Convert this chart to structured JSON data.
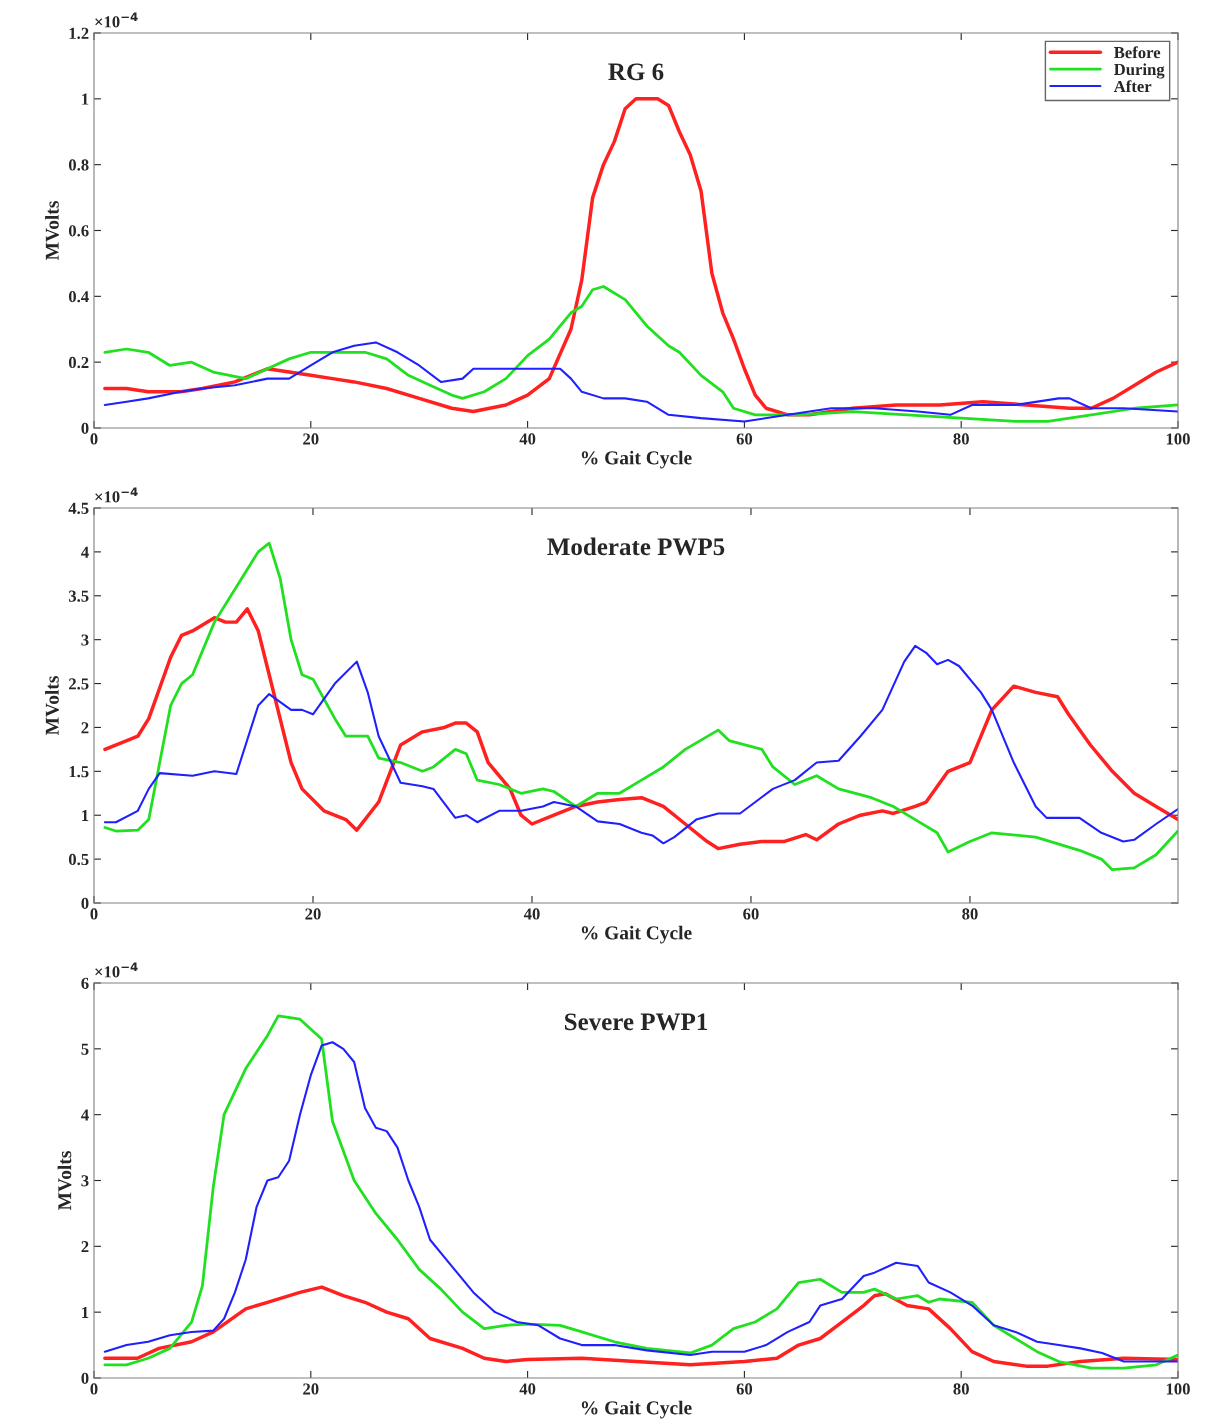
{
  "chart_data": [
    {
      "type": "line",
      "title": "RG 6",
      "xlabel": "% Gait Cycle",
      "ylabel": "MVolts",
      "xlim": [
        0,
        100
      ],
      "xticks": [
        0,
        20,
        40,
        60,
        80,
        100
      ],
      "ylim": [
        0,
        1.2
      ],
      "yticks": [
        0,
        0.2,
        0.4,
        0.6,
        0.8,
        1,
        1.2
      ],
      "legend": "top right",
      "grid": false,
      "annotations": [
        "×10$^{−4}$"
      ],
      "series": [
        {
          "name": "Before",
          "color": "#ff2020",
          "x": [
            1,
            3,
            5,
            8,
            10,
            13,
            16,
            18,
            20,
            22,
            24,
            27,
            30,
            33,
            35,
            38,
            40,
            42,
            44,
            45,
            46,
            47,
            48,
            49,
            50,
            51,
            52,
            53,
            54,
            55,
            56,
            57,
            58,
            59,
            60,
            61,
            62,
            64,
            66,
            70,
            74,
            78,
            82,
            86,
            90,
            92,
            94,
            96,
            98,
            100
          ],
          "values": [
            0.12,
            0.12,
            0.11,
            0.11,
            0.12,
            0.14,
            0.18,
            0.17,
            0.16,
            0.15,
            0.14,
            0.12,
            0.09,
            0.06,
            0.05,
            0.07,
            0.1,
            0.15,
            0.3,
            0.45,
            0.7,
            0.8,
            0.87,
            0.97,
            1.0,
            1.0,
            1.0,
            0.98,
            0.9,
            0.83,
            0.72,
            0.47,
            0.35,
            0.27,
            0.18,
            0.1,
            0.06,
            0.04,
            0.04,
            0.06,
            0.07,
            0.07,
            0.08,
            0.07,
            0.06,
            0.06,
            0.09,
            0.13,
            0.17,
            0.2
          ]
        },
        {
          "name": "During",
          "color": "#20e020",
          "x": [
            1,
            3,
            5,
            7,
            9,
            11,
            14,
            16,
            18,
            20,
            23,
            25,
            27,
            29,
            31,
            33,
            34,
            36,
            38,
            40,
            42,
            44,
            45,
            46,
            47,
            49,
            51,
            53,
            54,
            56,
            58,
            59,
            61,
            65,
            70,
            75,
            80,
            85,
            88,
            92,
            96,
            100
          ],
          "values": [
            0.23,
            0.24,
            0.23,
            0.19,
            0.2,
            0.17,
            0.15,
            0.18,
            0.21,
            0.23,
            0.23,
            0.23,
            0.21,
            0.16,
            0.13,
            0.1,
            0.09,
            0.11,
            0.15,
            0.22,
            0.27,
            0.35,
            0.37,
            0.42,
            0.43,
            0.39,
            0.31,
            0.25,
            0.23,
            0.16,
            0.11,
            0.06,
            0.04,
            0.04,
            0.05,
            0.04,
            0.03,
            0.02,
            0.02,
            0.04,
            0.06,
            0.07
          ]
        },
        {
          "name": "After",
          "color": "#2020ff",
          "x": [
            1,
            3,
            5,
            8,
            10,
            13,
            16,
            18,
            20,
            22,
            24,
            26,
            28,
            30,
            32,
            34,
            35,
            38,
            40,
            43,
            44,
            45,
            47,
            49,
            51,
            53,
            56,
            60,
            64,
            68,
            72,
            76,
            79,
            81,
            85,
            89,
            90,
            92,
            95,
            100
          ],
          "values": [
            0.07,
            0.08,
            0.09,
            0.11,
            0.12,
            0.13,
            0.15,
            0.15,
            0.19,
            0.23,
            0.25,
            0.26,
            0.23,
            0.19,
            0.14,
            0.15,
            0.18,
            0.18,
            0.18,
            0.18,
            0.15,
            0.11,
            0.09,
            0.09,
            0.08,
            0.04,
            0.03,
            0.02,
            0.04,
            0.06,
            0.06,
            0.05,
            0.04,
            0.07,
            0.07,
            0.09,
            0.09,
            0.06,
            0.06,
            0.05
          ]
        }
      ]
    },
    {
      "type": "line",
      "title": "Moderate PWP5",
      "xlabel": "% Gait Cycle",
      "ylabel": "MVolts",
      "xlim": [
        0,
        99
      ],
      "xticks": [
        0,
        20,
        40,
        60,
        80
      ],
      "ylim": [
        0,
        4.5
      ],
      "yticks": [
        0,
        0.5,
        1,
        1.5,
        2,
        2.5,
        3,
        3.5,
        4,
        4.5
      ],
      "grid": false,
      "annotations": [
        "×10$^{−4}$"
      ],
      "series": [
        {
          "color": "#ff2020",
          "x": [
            1,
            3,
            4,
            5,
            7,
            8,
            9,
            11,
            12,
            13,
            14,
            15,
            16,
            18,
            19,
            21,
            23,
            24,
            26,
            28,
            30,
            32,
            33,
            34,
            35,
            36,
            38,
            39,
            40,
            42,
            44,
            46,
            48,
            50,
            52,
            54,
            56,
            57,
            59,
            61,
            63,
            65,
            66,
            68,
            70,
            72,
            73,
            75,
            76,
            78,
            80,
            82,
            84,
            86,
            88,
            89,
            91,
            93,
            95,
            97,
            99
          ],
          "values": [
            1.75,
            1.85,
            1.9,
            2.1,
            2.8,
            3.05,
            3.1,
            3.25,
            3.2,
            3.2,
            3.35,
            3.1,
            2.6,
            1.6,
            1.3,
            1.05,
            0.95,
            0.83,
            1.15,
            1.8,
            1.95,
            2.0,
            2.05,
            2.05,
            1.95,
            1.6,
            1.3,
            1.0,
            0.9,
            1.0,
            1.1,
            1.15,
            1.18,
            1.2,
            1.1,
            0.9,
            0.7,
            0.62,
            0.67,
            0.7,
            0.7,
            0.78,
            0.72,
            0.9,
            1.0,
            1.05,
            1.02,
            1.1,
            1.15,
            1.5,
            1.6,
            2.2,
            2.47,
            2.4,
            2.35,
            2.15,
            1.8,
            1.5,
            1.25,
            1.1,
            0.95
          ]
        },
        {
          "color": "#20e020",
          "x": [
            1,
            2,
            4,
            5,
            7,
            8,
            9,
            11,
            13,
            15,
            16,
            17,
            18,
            19,
            20,
            22,
            23,
            25,
            26,
            28,
            30,
            31,
            33,
            34,
            35,
            37,
            39,
            41,
            42,
            44,
            46,
            48,
            50,
            52,
            54,
            57,
            58,
            61,
            62,
            64,
            66,
            68,
            71,
            73,
            75,
            77,
            78,
            80,
            82,
            86,
            90,
            92,
            93,
            95,
            97,
            99
          ],
          "values": [
            0.86,
            0.82,
            0.83,
            0.95,
            2.25,
            2.5,
            2.6,
            3.2,
            3.6,
            4.0,
            4.1,
            3.7,
            3.0,
            2.6,
            2.55,
            2.1,
            1.9,
            1.9,
            1.65,
            1.6,
            1.5,
            1.55,
            1.75,
            1.7,
            1.4,
            1.35,
            1.25,
            1.3,
            1.27,
            1.1,
            1.25,
            1.25,
            1.4,
            1.55,
            1.75,
            1.97,
            1.85,
            1.75,
            1.55,
            1.35,
            1.45,
            1.3,
            1.2,
            1.1,
            0.95,
            0.8,
            0.58,
            0.7,
            0.8,
            0.75,
            0.6,
            0.5,
            0.38,
            0.4,
            0.55,
            0.82
          ]
        },
        {
          "color": "#2020ff",
          "x": [
            1,
            2,
            4,
            5,
            6,
            9,
            11,
            13,
            15,
            16,
            18,
            19,
            20,
            22,
            24,
            25,
            26,
            28,
            30,
            31,
            33,
            34,
            35,
            37,
            39,
            41,
            42,
            44,
            46,
            48,
            50,
            51,
            52,
            53,
            55,
            57,
            59,
            62,
            64,
            66,
            68,
            70,
            72,
            74,
            75,
            76,
            77,
            78,
            79,
            81,
            82,
            84,
            86,
            87,
            89,
            90,
            92,
            94,
            95,
            97,
            99
          ],
          "values": [
            0.92,
            0.92,
            1.05,
            1.3,
            1.48,
            1.45,
            1.5,
            1.47,
            2.25,
            2.38,
            2.2,
            2.2,
            2.15,
            2.5,
            2.75,
            2.4,
            1.9,
            1.37,
            1.33,
            1.3,
            0.97,
            1.0,
            0.92,
            1.05,
            1.05,
            1.1,
            1.15,
            1.1,
            0.93,
            0.9,
            0.8,
            0.77,
            0.68,
            0.75,
            0.95,
            1.02,
            1.02,
            1.3,
            1.4,
            1.6,
            1.62,
            1.9,
            2.2,
            2.75,
            2.93,
            2.85,
            2.72,
            2.77,
            2.7,
            2.4,
            2.2,
            1.6,
            1.1,
            0.97,
            0.97,
            0.97,
            0.8,
            0.7,
            0.72,
            0.9,
            1.07
          ]
        }
      ]
    },
    {
      "type": "line",
      "title": "Severe PWP1",
      "xlabel": "% Gait Cycle",
      "ylabel": "MVolts",
      "xlim": [
        0,
        100
      ],
      "xticks": [
        0,
        20,
        40,
        60,
        80,
        100
      ],
      "ylim": [
        0,
        6
      ],
      "yticks": [
        0,
        1,
        2,
        3,
        4,
        5,
        6
      ],
      "grid": false,
      "annotations": [
        "×10$^{−4}$"
      ],
      "series": [
        {
          "color": "#ff2020",
          "x": [
            1,
            4,
            6,
            9,
            11,
            14,
            16,
            19,
            21,
            23,
            25,
            27,
            29,
            31,
            34,
            36,
            38,
            40,
            45,
            50,
            55,
            60,
            63,
            65,
            67,
            69,
            71,
            72,
            73,
            75,
            77,
            79,
            81,
            83,
            86,
            88,
            91,
            95,
            100
          ],
          "values": [
            0.3,
            0.3,
            0.45,
            0.55,
            0.7,
            1.05,
            1.15,
            1.3,
            1.38,
            1.25,
            1.15,
            1.0,
            0.9,
            0.6,
            0.45,
            0.3,
            0.25,
            0.28,
            0.3,
            0.25,
            0.2,
            0.25,
            0.3,
            0.5,
            0.6,
            0.85,
            1.1,
            1.25,
            1.28,
            1.1,
            1.05,
            0.75,
            0.4,
            0.25,
            0.18,
            0.18,
            0.25,
            0.3,
            0.28
          ]
        },
        {
          "color": "#20e020",
          "x": [
            1,
            3,
            5,
            7,
            9,
            10,
            11,
            12,
            14,
            16,
            17,
            19,
            21,
            22,
            24,
            26,
            28,
            30,
            32,
            34,
            36,
            38,
            40,
            43,
            45,
            48,
            51,
            55,
            57,
            59,
            61,
            63,
            65,
            67,
            69,
            71,
            72,
            74,
            76,
            77,
            78,
            81,
            83,
            85,
            87,
            89,
            92,
            95,
            98,
            100
          ],
          "values": [
            0.2,
            0.2,
            0.3,
            0.45,
            0.85,
            1.4,
            2.9,
            4.0,
            4.7,
            5.2,
            5.5,
            5.45,
            5.15,
            3.9,
            3.0,
            2.5,
            2.1,
            1.65,
            1.35,
            1.0,
            0.75,
            0.8,
            0.82,
            0.8,
            0.7,
            0.55,
            0.45,
            0.38,
            0.5,
            0.75,
            0.85,
            1.05,
            1.45,
            1.5,
            1.3,
            1.3,
            1.35,
            1.2,
            1.25,
            1.15,
            1.2,
            1.15,
            0.8,
            0.6,
            0.4,
            0.25,
            0.15,
            0.15,
            0.2,
            0.35
          ]
        },
        {
          "color": "#2020ff",
          "x": [
            1,
            3,
            5,
            7,
            9,
            11,
            12,
            13,
            14,
            15,
            16,
            17,
            18,
            19,
            20,
            21,
            22,
            23,
            24,
            25,
            26,
            27,
            28,
            29,
            30,
            31,
            33,
            35,
            37,
            39,
            41,
            43,
            45,
            48,
            51,
            55,
            57,
            60,
            62,
            64,
            66,
            67,
            69,
            71,
            72,
            74,
            76,
            77,
            79,
            81,
            83,
            85,
            87,
            89,
            91,
            93,
            95,
            97,
            100
          ],
          "values": [
            0.4,
            0.5,
            0.55,
            0.65,
            0.7,
            0.72,
            0.9,
            1.3,
            1.8,
            2.6,
            3.0,
            3.05,
            3.3,
            4.0,
            4.6,
            5.05,
            5.1,
            5.0,
            4.8,
            4.1,
            3.8,
            3.75,
            3.5,
            3.0,
            2.6,
            2.1,
            1.7,
            1.3,
            1.0,
            0.85,
            0.8,
            0.6,
            0.5,
            0.5,
            0.42,
            0.35,
            0.4,
            0.4,
            0.5,
            0.7,
            0.85,
            1.1,
            1.2,
            1.55,
            1.6,
            1.75,
            1.7,
            1.45,
            1.3,
            1.1,
            0.8,
            0.7,
            0.55,
            0.5,
            0.45,
            0.38,
            0.25,
            0.25,
            0.25
          ]
        }
      ]
    }
  ]
}
